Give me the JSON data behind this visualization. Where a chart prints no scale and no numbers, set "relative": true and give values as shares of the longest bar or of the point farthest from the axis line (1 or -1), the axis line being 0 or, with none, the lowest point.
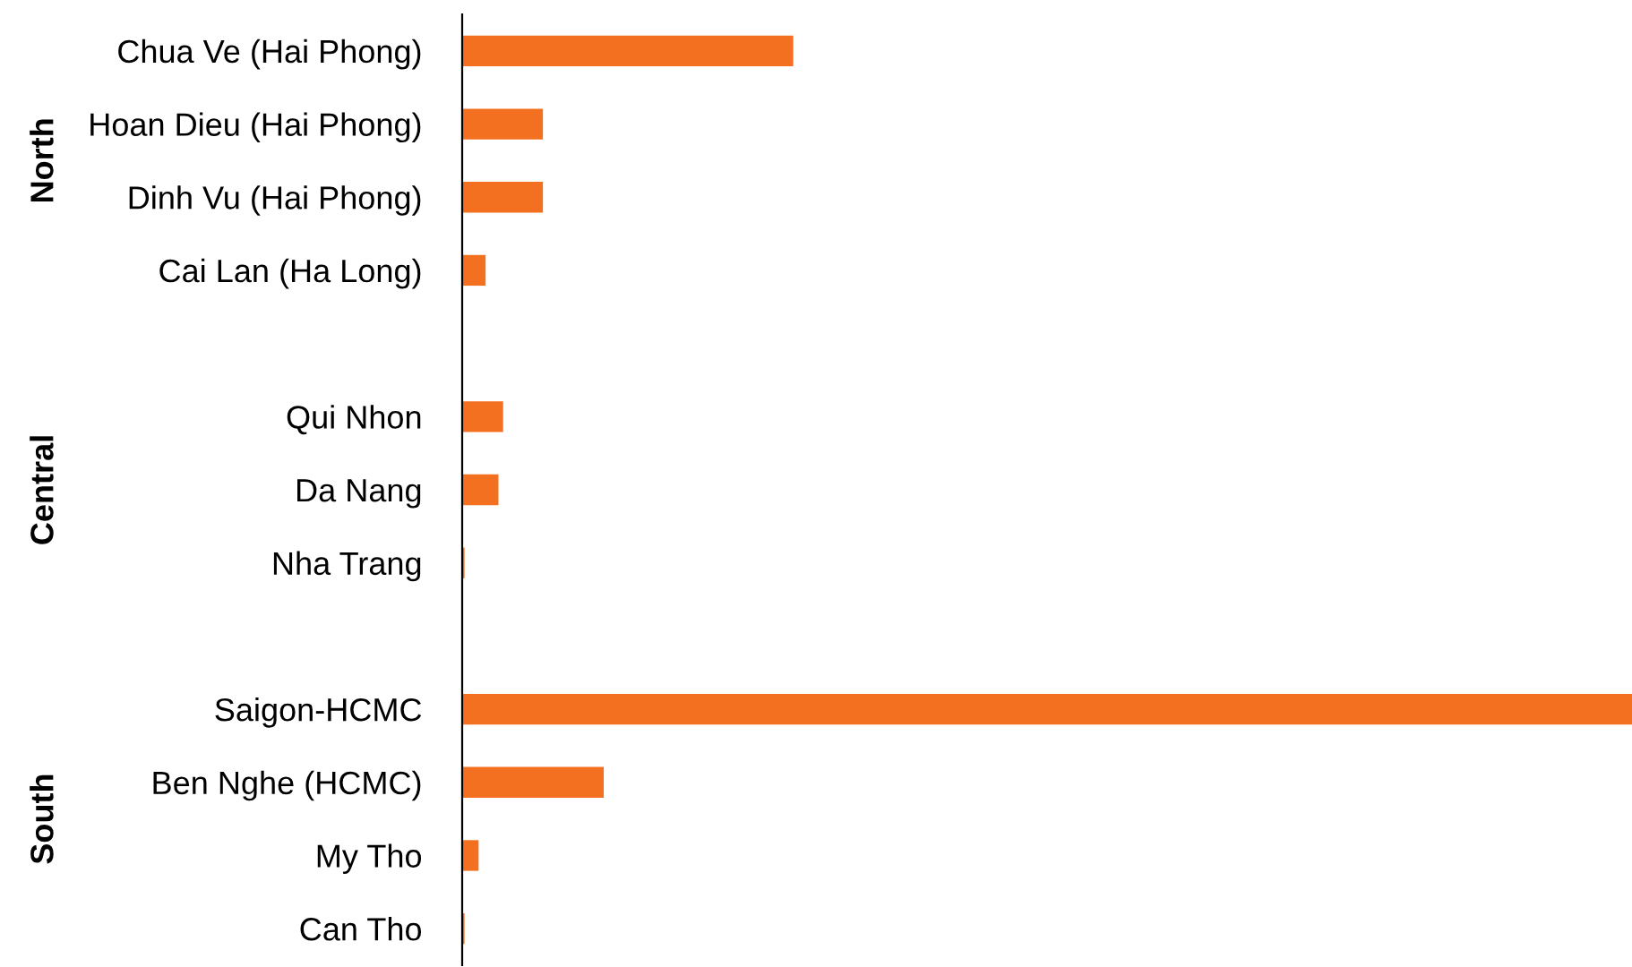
{
  "chart_data": {
    "type": "bar",
    "orientation": "horizontal",
    "relative": true,
    "categories": [
      "Chua Ve (Hai Phong)",
      "Hoan Dieu (Hai Phong)",
      "Dinh Vu (Hai Phong)",
      "Cai Lan (Ha Long)",
      null,
      "Qui Nhon",
      "Da Nang",
      "Nha Trang",
      null,
      "Saigon-HCMC",
      "Ben Nghe (HCMC)",
      "My Tho",
      "Can Tho"
    ],
    "values": [
      0.283,
      0.069,
      0.069,
      0.02,
      null,
      0.035,
      0.031,
      0.002,
      null,
      1,
      0.121,
      0.014,
      0.002
    ],
    "color": "#f37021",
    "annotations": [
      "North",
      "Central",
      "South"
    ],
    "grid": false,
    "legend": false
  }
}
